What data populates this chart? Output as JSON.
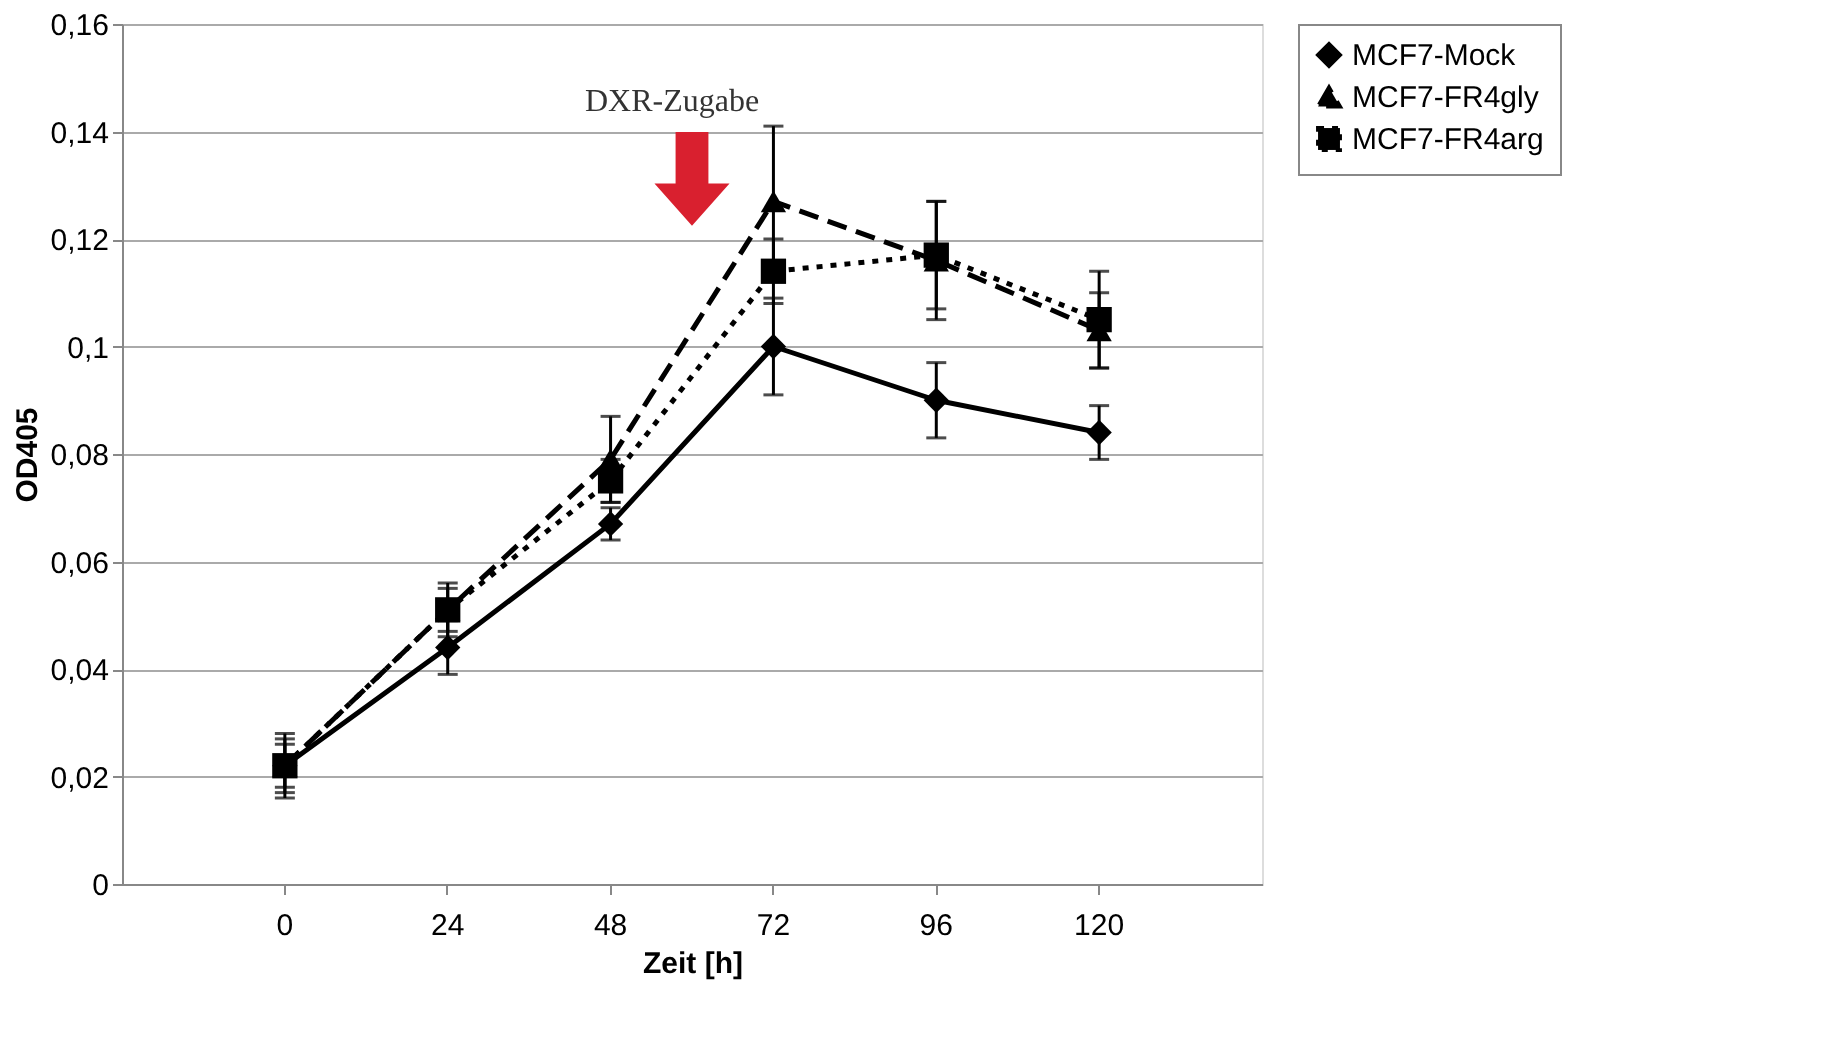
{
  "chart_data": {
    "type": "line",
    "xlabel": "Zeit [h]",
    "ylabel": "OD405",
    "annotations": [
      "DXR-Zugabe"
    ],
    "categories": [
      "0",
      "24",
      "48",
      "72",
      "96",
      "120"
    ],
    "ylim": [
      0,
      0.16
    ],
    "yticks": [
      {
        "value": 0,
        "label": "0"
      },
      {
        "value": 0.02,
        "label": "0,02"
      },
      {
        "value": 0.04,
        "label": "0,04"
      },
      {
        "value": 0.06,
        "label": "0,06"
      },
      {
        "value": 0.08,
        "label": "0,08"
      },
      {
        "value": 0.1,
        "label": "0,1"
      },
      {
        "value": 0.12,
        "label": "0,12"
      },
      {
        "value": 0.14,
        "label": "0,14"
      },
      {
        "value": 0.16,
        "label": "0,16"
      }
    ],
    "grid": "y",
    "legend": "right",
    "series": [
      {
        "name": "MCF7-Mock",
        "color": "#000000",
        "marker": "diamond",
        "line_style": "solid",
        "values": [
          0.022,
          0.044,
          0.067,
          0.1,
          0.09,
          0.084
        ],
        "errors": [
          0.005,
          0.005,
          0.003,
          0.009,
          0.007,
          0.005
        ]
      },
      {
        "name": "MCF7-FR4gly",
        "color": "#000000",
        "marker": "triangle",
        "line_style": "dashed",
        "values": [
          0.022,
          0.051,
          0.079,
          0.127,
          0.116,
          0.103
        ],
        "errors": [
          0.004,
          0.004,
          0.008,
          0.014,
          0.011,
          0.007
        ]
      },
      {
        "name": "MCF7-FR4arg",
        "color": "#000000",
        "marker": "square",
        "line_style": "dotted",
        "values": [
          0.022,
          0.051,
          0.075,
          0.114,
          0.117,
          0.105
        ],
        "errors": [
          0.006,
          0.005,
          0.004,
          0.006,
          0.01,
          0.009
        ]
      }
    ]
  }
}
